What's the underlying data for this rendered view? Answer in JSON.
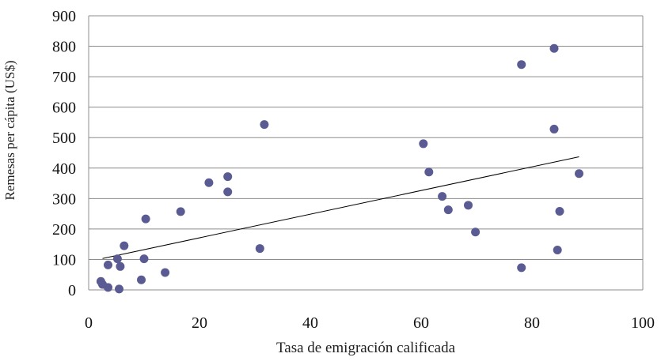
{
  "chart_data": {
    "type": "scatter",
    "title": "",
    "xlabel": "Tasa de emigración calificada",
    "ylabel": "Remesas per cápita (US$)",
    "xlim": [
      0,
      100
    ],
    "ylim": [
      0,
      900
    ],
    "x_ticks": [
      "0",
      "20",
      "40",
      "60",
      "80",
      "100"
    ],
    "y_ticks": [
      "0",
      "100",
      "200",
      "300",
      "400",
      "500",
      "600",
      "700",
      "800",
      "900"
    ],
    "grid": "horizontal",
    "legend": "none",
    "marker_color": "#5b5b94",
    "trendline": {
      "type": "linear",
      "x_start": 2.5,
      "y_start": 103,
      "x_end": 88.5,
      "y_end": 437
    },
    "points": [
      {
        "x": 2.2,
        "y": 28
      },
      {
        "x": 2.5,
        "y": 18
      },
      {
        "x": 3.5,
        "y": 82
      },
      {
        "x": 3.5,
        "y": 8
      },
      {
        "x": 5.2,
        "y": 102
      },
      {
        "x": 5.5,
        "y": 3
      },
      {
        "x": 5.7,
        "y": 77
      },
      {
        "x": 6.4,
        "y": 145
      },
      {
        "x": 9.5,
        "y": 33
      },
      {
        "x": 10.0,
        "y": 102
      },
      {
        "x": 10.3,
        "y": 233
      },
      {
        "x": 13.8,
        "y": 57
      },
      {
        "x": 16.6,
        "y": 257
      },
      {
        "x": 21.7,
        "y": 352
      },
      {
        "x": 25.1,
        "y": 372
      },
      {
        "x": 25.1,
        "y": 322
      },
      {
        "x": 30.9,
        "y": 136
      },
      {
        "x": 31.7,
        "y": 543
      },
      {
        "x": 60.4,
        "y": 480
      },
      {
        "x": 61.4,
        "y": 387
      },
      {
        "x": 63.8,
        "y": 307
      },
      {
        "x": 64.9,
        "y": 263
      },
      {
        "x": 68.5,
        "y": 278
      },
      {
        "x": 69.8,
        "y": 190
      },
      {
        "x": 78.1,
        "y": 740
      },
      {
        "x": 78.1,
        "y": 73
      },
      {
        "x": 84.0,
        "y": 793
      },
      {
        "x": 84.0,
        "y": 528
      },
      {
        "x": 84.6,
        "y": 131
      },
      {
        "x": 85.0,
        "y": 258
      },
      {
        "x": 88.5,
        "y": 382
      }
    ]
  }
}
